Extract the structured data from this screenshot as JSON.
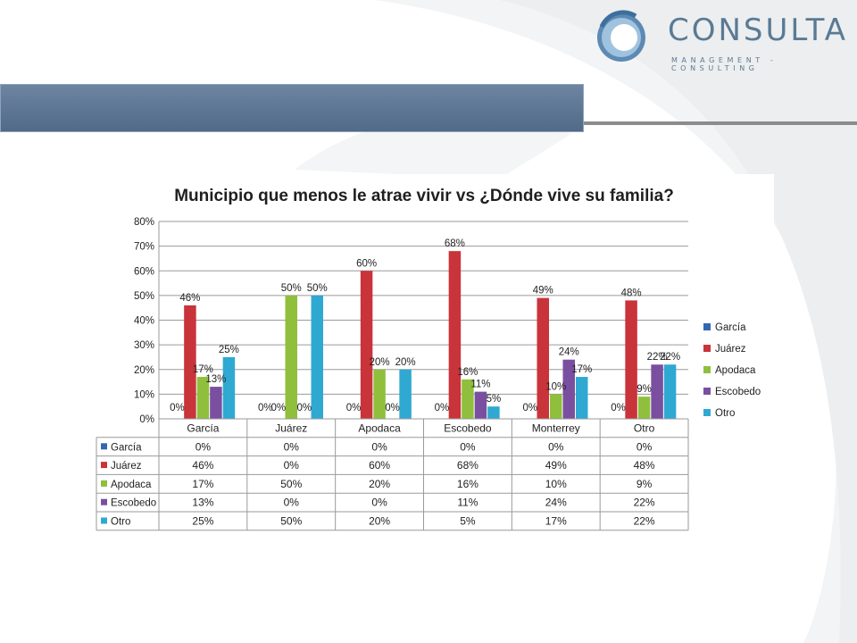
{
  "logo": {
    "name": "CONSULTA",
    "tagline": "MANAGEMENT - CONSULTING"
  },
  "colors": {
    "García": "#3366b3",
    "Juárez": "#c9333a",
    "Apodaca": "#8fbf3c",
    "Escobedo": "#7a4fa0",
    "Otro": "#2fa9d1"
  },
  "chart_data": {
    "type": "bar",
    "title": "Municipio que menos le atrae vivir vs ¿Dónde vive su familia?",
    "categories": [
      "García",
      "Juárez",
      "Apodaca",
      "Escobedo",
      "Monterrey",
      "Otro"
    ],
    "series": [
      {
        "name": "García",
        "values": [
          0,
          0,
          0,
          0,
          0,
          0
        ]
      },
      {
        "name": "Juárez",
        "values": [
          46,
          0,
          60,
          68,
          49,
          48
        ]
      },
      {
        "name": "Apodaca",
        "values": [
          17,
          50,
          20,
          16,
          10,
          9
        ]
      },
      {
        "name": "Escobedo",
        "values": [
          13,
          0,
          0,
          11,
          24,
          22
        ]
      },
      {
        "name": "Otro",
        "values": [
          25,
          50,
          20,
          5,
          17,
          22
        ]
      }
    ],
    "unit": "%",
    "ylim": [
      0,
      80
    ],
    "yticks": [
      "0%",
      "10%",
      "20%",
      "30%",
      "40%",
      "50%",
      "60%",
      "70%",
      "80%"
    ],
    "grid": true,
    "legend": "right",
    "data_table": true
  }
}
